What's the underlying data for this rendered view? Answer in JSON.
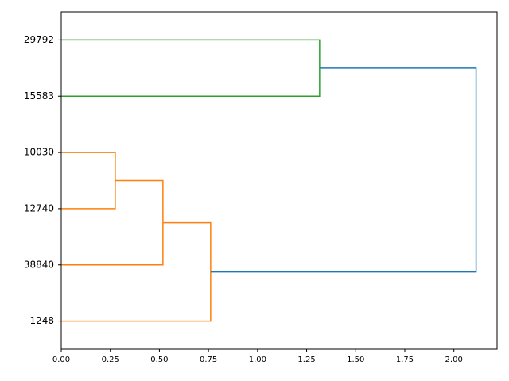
{
  "chart_data": {
    "type": "dendrogram",
    "orientation": "horizontal",
    "categories": [
      "29792",
      "15583",
      "10030",
      "12740",
      "38840",
      "1248"
    ],
    "merges": [
      {
        "children": [
          2,
          3
        ],
        "height": 0.275,
        "color": "#ff7f0e"
      },
      {
        "children": [
          6,
          4
        ],
        "height": 0.518,
        "color": "#ff7f0e"
      },
      {
        "children": [
          7,
          5
        ],
        "height": 0.761,
        "color": "#ff7f0e"
      },
      {
        "children": [
          0,
          1
        ],
        "height": 1.316,
        "color": "#2ca02c"
      },
      {
        "children": [
          9,
          8
        ],
        "height": 2.113,
        "color": "#1f77b4"
      }
    ],
    "xlim": [
      0,
      2.22
    ],
    "xticks": [
      {
        "value": 0,
        "label": "0.00"
      },
      {
        "value": 0.25,
        "label": "0.25"
      },
      {
        "value": 0.5,
        "label": "0.50"
      },
      {
        "value": 0.75,
        "label": "0.75"
      },
      {
        "value": 1,
        "label": "1.00"
      },
      {
        "value": 1.25,
        "label": "1.25"
      },
      {
        "value": 1.5,
        "label": "1.50"
      },
      {
        "value": 1.75,
        "label": "1.75"
      },
      {
        "value": 2,
        "label": "2.00"
      }
    ]
  }
}
